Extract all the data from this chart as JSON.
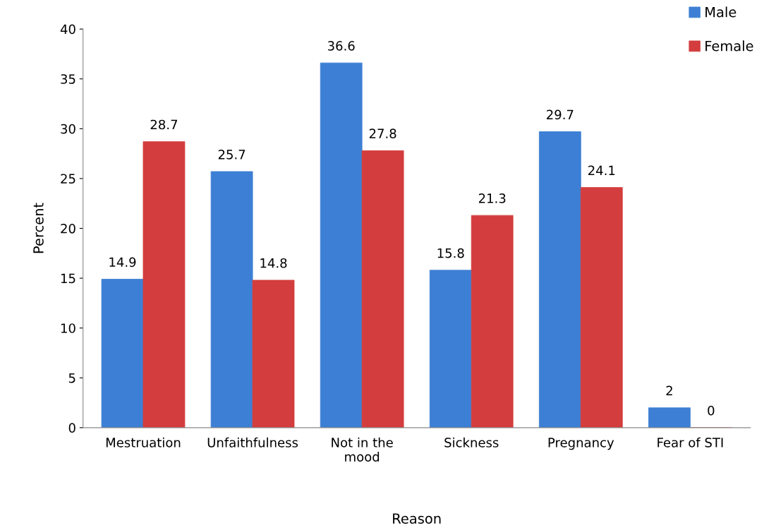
{
  "chart_data": {
    "type": "bar",
    "xlabel": "Reason",
    "ylabel": "Percent",
    "categories": [
      "Mestruation",
      "Unfaithfulness",
      "Not in the\nmood",
      "Sickness",
      "Pregnancy",
      "Fear of STI"
    ],
    "series": [
      {
        "name": "Male",
        "color": "#3d7fd4",
        "values": [
          14.9,
          25.7,
          36.6,
          15.8,
          29.7,
          2
        ]
      },
      {
        "name": "Female",
        "color": "#d43d3d",
        "values": [
          28.7,
          14.8,
          27.8,
          21.3,
          24.1,
          0
        ]
      }
    ],
    "ylim": [
      0,
      40
    ],
    "yticks": [
      0,
      5,
      10,
      15,
      20,
      25,
      30,
      35,
      40
    ],
    "data_labels": true,
    "legend": "top right",
    "grid": false
  }
}
